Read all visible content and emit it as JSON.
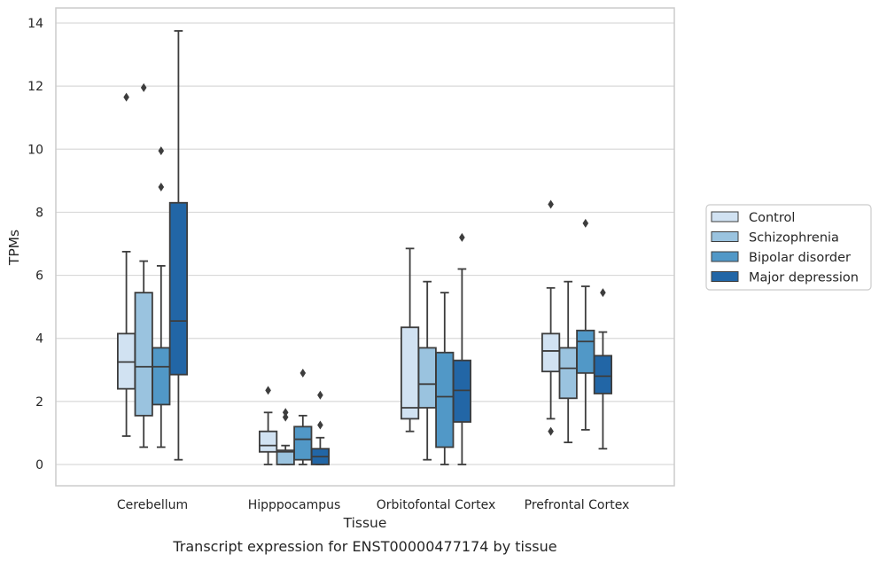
{
  "caption": "Transcript expression for ENST00000477174 by tissue",
  "chart_data": {
    "type": "box",
    "xlabel": "Tissue",
    "ylabel": "TPMs",
    "ylim": [
      -0.65,
      14.4
    ],
    "yticks": [
      0,
      2,
      4,
      6,
      8,
      10,
      12,
      14
    ],
    "grid": true,
    "legend_position": "right",
    "categories": [
      "Cerebellum",
      "Hipppocampus",
      "Orbitofontal Cortex",
      "Prefrontal Cortex"
    ],
    "series": [
      {
        "name": "Control",
        "color": "#d1e2f2",
        "boxes": [
          {
            "whisker_low": 0.9,
            "q1": 2.4,
            "median": 3.25,
            "q3": 4.15,
            "whisker_high": 6.75,
            "outliers": [
              11.65
            ]
          },
          {
            "whisker_low": 0.0,
            "q1": 0.4,
            "median": 0.6,
            "q3": 1.05,
            "whisker_high": 1.65,
            "outliers": [
              2.35
            ]
          },
          {
            "whisker_low": 1.05,
            "q1": 1.45,
            "median": 1.8,
            "q3": 4.35,
            "whisker_high": 6.85,
            "outliers": []
          },
          {
            "whisker_low": 1.45,
            "q1": 2.95,
            "median": 3.6,
            "q3": 4.15,
            "whisker_high": 5.6,
            "outliers": [
              1.05,
              8.25
            ]
          }
        ]
      },
      {
        "name": "Schizophrenia",
        "color": "#9ac3df",
        "boxes": [
          {
            "whisker_low": 0.55,
            "q1": 1.55,
            "median": 3.1,
            "q3": 5.45,
            "whisker_high": 6.45,
            "outliers": [
              11.95
            ]
          },
          {
            "whisker_low": 0.0,
            "q1": 0.0,
            "median": 0.4,
            "q3": 0.45,
            "whisker_high": 0.6,
            "outliers": [
              1.5,
              1.65
            ]
          },
          {
            "whisker_low": 0.15,
            "q1": 1.8,
            "median": 2.55,
            "q3": 3.7,
            "whisker_high": 5.8,
            "outliers": []
          },
          {
            "whisker_low": 0.7,
            "q1": 2.1,
            "median": 3.05,
            "q3": 3.7,
            "whisker_high": 5.8,
            "outliers": []
          }
        ]
      },
      {
        "name": "Bipolar disorder",
        "color": "#5198c7",
        "boxes": [
          {
            "whisker_low": 0.55,
            "q1": 1.9,
            "median": 3.1,
            "q3": 3.7,
            "whisker_high": 6.3,
            "outliers": [
              8.8,
              9.95
            ]
          },
          {
            "whisker_low": 0.0,
            "q1": 0.15,
            "median": 0.8,
            "q3": 1.2,
            "whisker_high": 1.55,
            "outliers": [
              2.9
            ]
          },
          {
            "whisker_low": 0.0,
            "q1": 0.55,
            "median": 2.15,
            "q3": 3.55,
            "whisker_high": 5.45,
            "outliers": []
          },
          {
            "whisker_low": 1.1,
            "q1": 2.9,
            "median": 3.9,
            "q3": 4.25,
            "whisker_high": 5.65,
            "outliers": [
              7.65
            ]
          }
        ]
      },
      {
        "name": "Major depression",
        "color": "#2266a6",
        "boxes": [
          {
            "whisker_low": 0.15,
            "q1": 2.85,
            "median": 4.55,
            "q3": 8.3,
            "whisker_high": 13.75,
            "outliers": []
          },
          {
            "whisker_low": 0.0,
            "q1": 0.0,
            "median": 0.25,
            "q3": 0.5,
            "whisker_high": 0.85,
            "outliers": [
              1.25,
              2.2
            ]
          },
          {
            "whisker_low": 0.0,
            "q1": 1.35,
            "median": 2.35,
            "q3": 3.3,
            "whisker_high": 6.2,
            "outliers": [
              7.2
            ]
          },
          {
            "whisker_low": 0.5,
            "q1": 2.25,
            "median": 2.8,
            "q3": 3.45,
            "whisker_high": 4.2,
            "outliers": [
              5.45
            ]
          }
        ]
      }
    ]
  }
}
